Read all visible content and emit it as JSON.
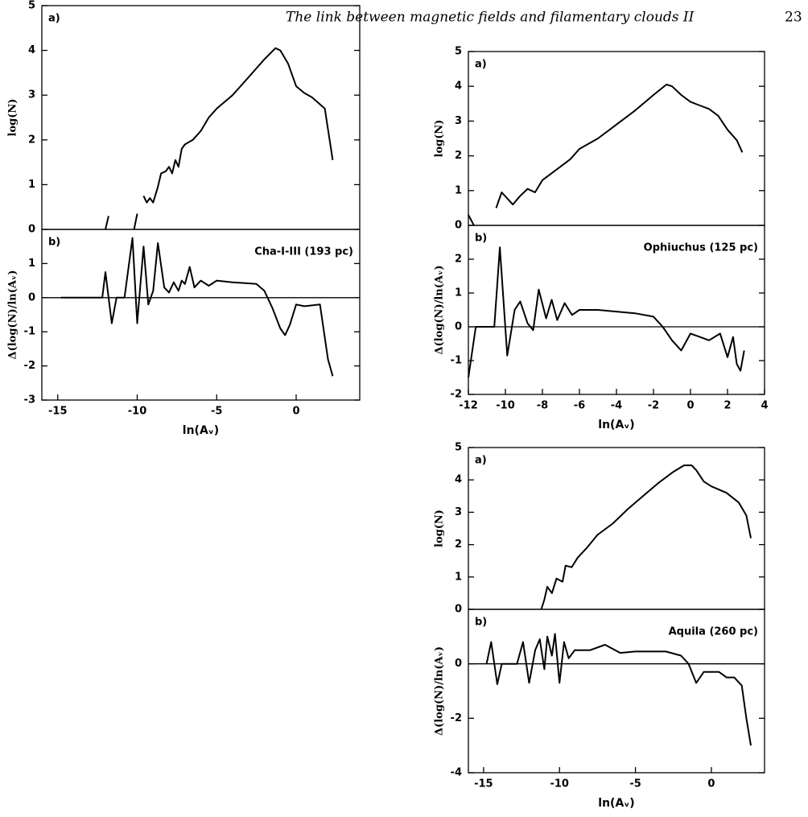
{
  "header": {
    "title": "The link between magnetic fields and filamentary clouds II",
    "page": "23"
  },
  "chart_data": [
    {
      "type": "line",
      "panel_label": "a)",
      "ylabel": "log(N)",
      "xlim": [
        -16,
        4
      ],
      "ylim": [
        0,
        5
      ],
      "yticks": [
        0,
        1,
        2,
        3,
        4,
        5
      ],
      "x": [
        -12,
        -11.8,
        null,
        -10.2,
        -10,
        null,
        -9.6,
        -9.4,
        -9.2,
        -9,
        -8.7,
        -8.5,
        -8.2,
        -8,
        -7.8,
        -7.6,
        -7.4,
        -7.2,
        -7,
        -6.5,
        -6,
        -5.5,
        -5,
        -4,
        -3,
        -2,
        -1.3,
        -1,
        -0.5,
        0,
        0.5,
        1,
        1.8,
        2.3
      ],
      "values": [
        0,
        0.3,
        null,
        0,
        0.35,
        null,
        0.75,
        0.6,
        0.7,
        0.6,
        0.95,
        1.25,
        1.3,
        1.4,
        1.25,
        1.55,
        1.4,
        1.8,
        1.9,
        2.0,
        2.2,
        2.5,
        2.7,
        3.0,
        3.4,
        3.8,
        4.05,
        4.0,
        3.7,
        3.2,
        3.05,
        2.95,
        2.7,
        1.55
      ]
    },
    {
      "type": "line",
      "panel_label": "b)",
      "ylabel": "Δ(log(N)/ln(Aᵥ)",
      "xlabel": "ln(Aᵥ)",
      "annotation": "Cha-I-III (193 pc)",
      "xlim": [
        -16,
        4
      ],
      "xticks": [
        -15,
        -10,
        -5,
        0
      ],
      "ylim": [
        -3,
        2
      ],
      "yticks": [
        -3,
        -2,
        -1,
        0,
        1
      ],
      "x": [
        -14.8,
        -12.2,
        -12,
        -11.6,
        -11.3,
        -10.8,
        -10.3,
        -10,
        -9.6,
        -9.3,
        -9,
        -8.7,
        -8.3,
        -8,
        -7.7,
        -7.4,
        -7.2,
        -7,
        -6.7,
        -6.4,
        -6,
        -5.5,
        -5,
        -4,
        -3,
        -2.5,
        -2,
        -1.5,
        -1,
        -0.7,
        -0.4,
        0,
        0.5,
        1.5,
        2,
        2.3
      ],
      "values": [
        0,
        0,
        0.75,
        -0.75,
        0,
        0,
        1.75,
        -0.75,
        1.5,
        -0.2,
        0.2,
        1.6,
        0.3,
        0.15,
        0.45,
        0.2,
        0.5,
        0.4,
        0.9,
        0.3,
        0.5,
        0.35,
        0.5,
        0.45,
        0.42,
        0.4,
        0.2,
        -0.3,
        -0.9,
        -1.1,
        -0.8,
        -0.2,
        -0.25,
        -0.2,
        -1.8,
        -2.3
      ]
    },
    {
      "type": "line",
      "panel_label": "a)",
      "ylabel": "log(N)",
      "xlim": [
        -12,
        4
      ],
      "ylim": [
        0,
        5
      ],
      "yticks": [
        0,
        1,
        2,
        3,
        4,
        5
      ],
      "x": [
        -12,
        -11.7,
        null,
        -10.5,
        -10.2,
        -9.6,
        -9.2,
        -8.8,
        -8.4,
        -8,
        -7.5,
        -7,
        -6.5,
        -6,
        -5,
        -4,
        -3,
        -2,
        -1.3,
        -1,
        -0.5,
        0,
        0.5,
        1,
        1.5,
        2,
        2.5,
        2.8
      ],
      "values": [
        0.3,
        0,
        null,
        0.5,
        0.95,
        0.6,
        0.85,
        1.05,
        0.95,
        1.3,
        1.5,
        1.7,
        1.9,
        2.2,
        2.5,
        2.9,
        3.3,
        3.75,
        4.05,
        4.0,
        3.75,
        3.55,
        3.45,
        3.35,
        3.15,
        2.75,
        2.45,
        2.1
      ]
    },
    {
      "type": "line",
      "panel_label": "b)",
      "ylabel": "Δ(log(N)/ln(Aᵥ)",
      "xlabel": "ln(Aᵥ)",
      "annotation": "Ophiuchus (125 pc)",
      "xlim": [
        -12,
        4
      ],
      "xticks": [
        -12,
        -10,
        -8,
        -6,
        -4,
        -2,
        0,
        2,
        4
      ],
      "ylim": [
        -2,
        3
      ],
      "yticks": [
        -2,
        -1,
        0,
        1,
        2
      ],
      "x": [
        -12,
        -11.6,
        -10.6,
        -10.3,
        -9.9,
        -9.5,
        -9.2,
        -8.8,
        -8.5,
        -8.2,
        -7.8,
        -7.5,
        -7.2,
        -6.8,
        -6.4,
        -6,
        -5,
        -4,
        -3,
        -2,
        -1.5,
        -1,
        -0.5,
        0,
        0.5,
        1,
        1.6,
        2,
        2.3,
        2.5,
        2.7,
        2.9
      ],
      "values": [
        -1.5,
        0,
        0,
        2.35,
        -0.85,
        0.5,
        0.75,
        0.1,
        -0.1,
        1.1,
        0.25,
        0.8,
        0.2,
        0.7,
        0.35,
        0.5,
        0.5,
        0.45,
        0.4,
        0.3,
        0,
        -0.4,
        -0.7,
        -0.2,
        -0.3,
        -0.4,
        -0.2,
        -0.9,
        -0.3,
        -1.1,
        -1.3,
        -0.7
      ]
    },
    {
      "type": "line",
      "panel_label": "a)",
      "ylabel": "log(N)",
      "xlim": [
        -16,
        3.5
      ],
      "ylim": [
        0,
        5
      ],
      "yticks": [
        0,
        1,
        2,
        3,
        4,
        5
      ],
      "x": [
        -11.2,
        -11,
        -10.8,
        -10.5,
        -10.2,
        -9.8,
        -9.6,
        -9.2,
        -8.8,
        -8.2,
        -7.5,
        -6.5,
        -5.5,
        -4.5,
        -3.5,
        -2.5,
        -1.8,
        -1.3,
        -1,
        -0.5,
        0,
        1,
        1.8,
        2.3,
        2.6
      ],
      "values": [
        0,
        0.3,
        0.7,
        0.5,
        0.95,
        0.85,
        1.35,
        1.3,
        1.6,
        1.9,
        2.3,
        2.65,
        3.1,
        3.5,
        3.9,
        4.25,
        4.45,
        4.45,
        4.3,
        3.95,
        3.8,
        3.6,
        3.3,
        2.9,
        2.2
      ]
    },
    {
      "type": "line",
      "panel_label": "b)",
      "ylabel": "Δ(log(N)/ln(Aᵥ)",
      "xlabel": "ln(Aᵥ)",
      "annotation": "Aquila (260 pc)",
      "xlim": [
        -16,
        3.5
      ],
      "xticks": [
        -15,
        -10,
        -5,
        0
      ],
      "ylim": [
        -4,
        2
      ],
      "yticks": [
        -4,
        -2,
        0
      ],
      "x": [
        -14.8,
        -14.5,
        -14.1,
        -13.8,
        -12.8,
        -12.4,
        -12,
        -11.6,
        -11.3,
        -11,
        -10.8,
        -10.5,
        -10.3,
        -10,
        -9.7,
        -9.4,
        -9,
        -8,
        -7,
        -6,
        -5,
        -3,
        -2,
        -1.5,
        -1,
        -0.5,
        0.5,
        1,
        1.5,
        2,
        2.3,
        2.6
      ],
      "values": [
        0,
        0.8,
        -0.75,
        0,
        0,
        0.8,
        -0.7,
        0.5,
        0.9,
        -0.2,
        1.0,
        0.3,
        1.1,
        -0.7,
        0.8,
        0.2,
        0.5,
        0.5,
        0.7,
        0.4,
        0.45,
        0.45,
        0.3,
        0,
        -0.7,
        -0.3,
        -0.3,
        -0.5,
        -0.5,
        -0.8,
        -2,
        -3
      ]
    }
  ]
}
